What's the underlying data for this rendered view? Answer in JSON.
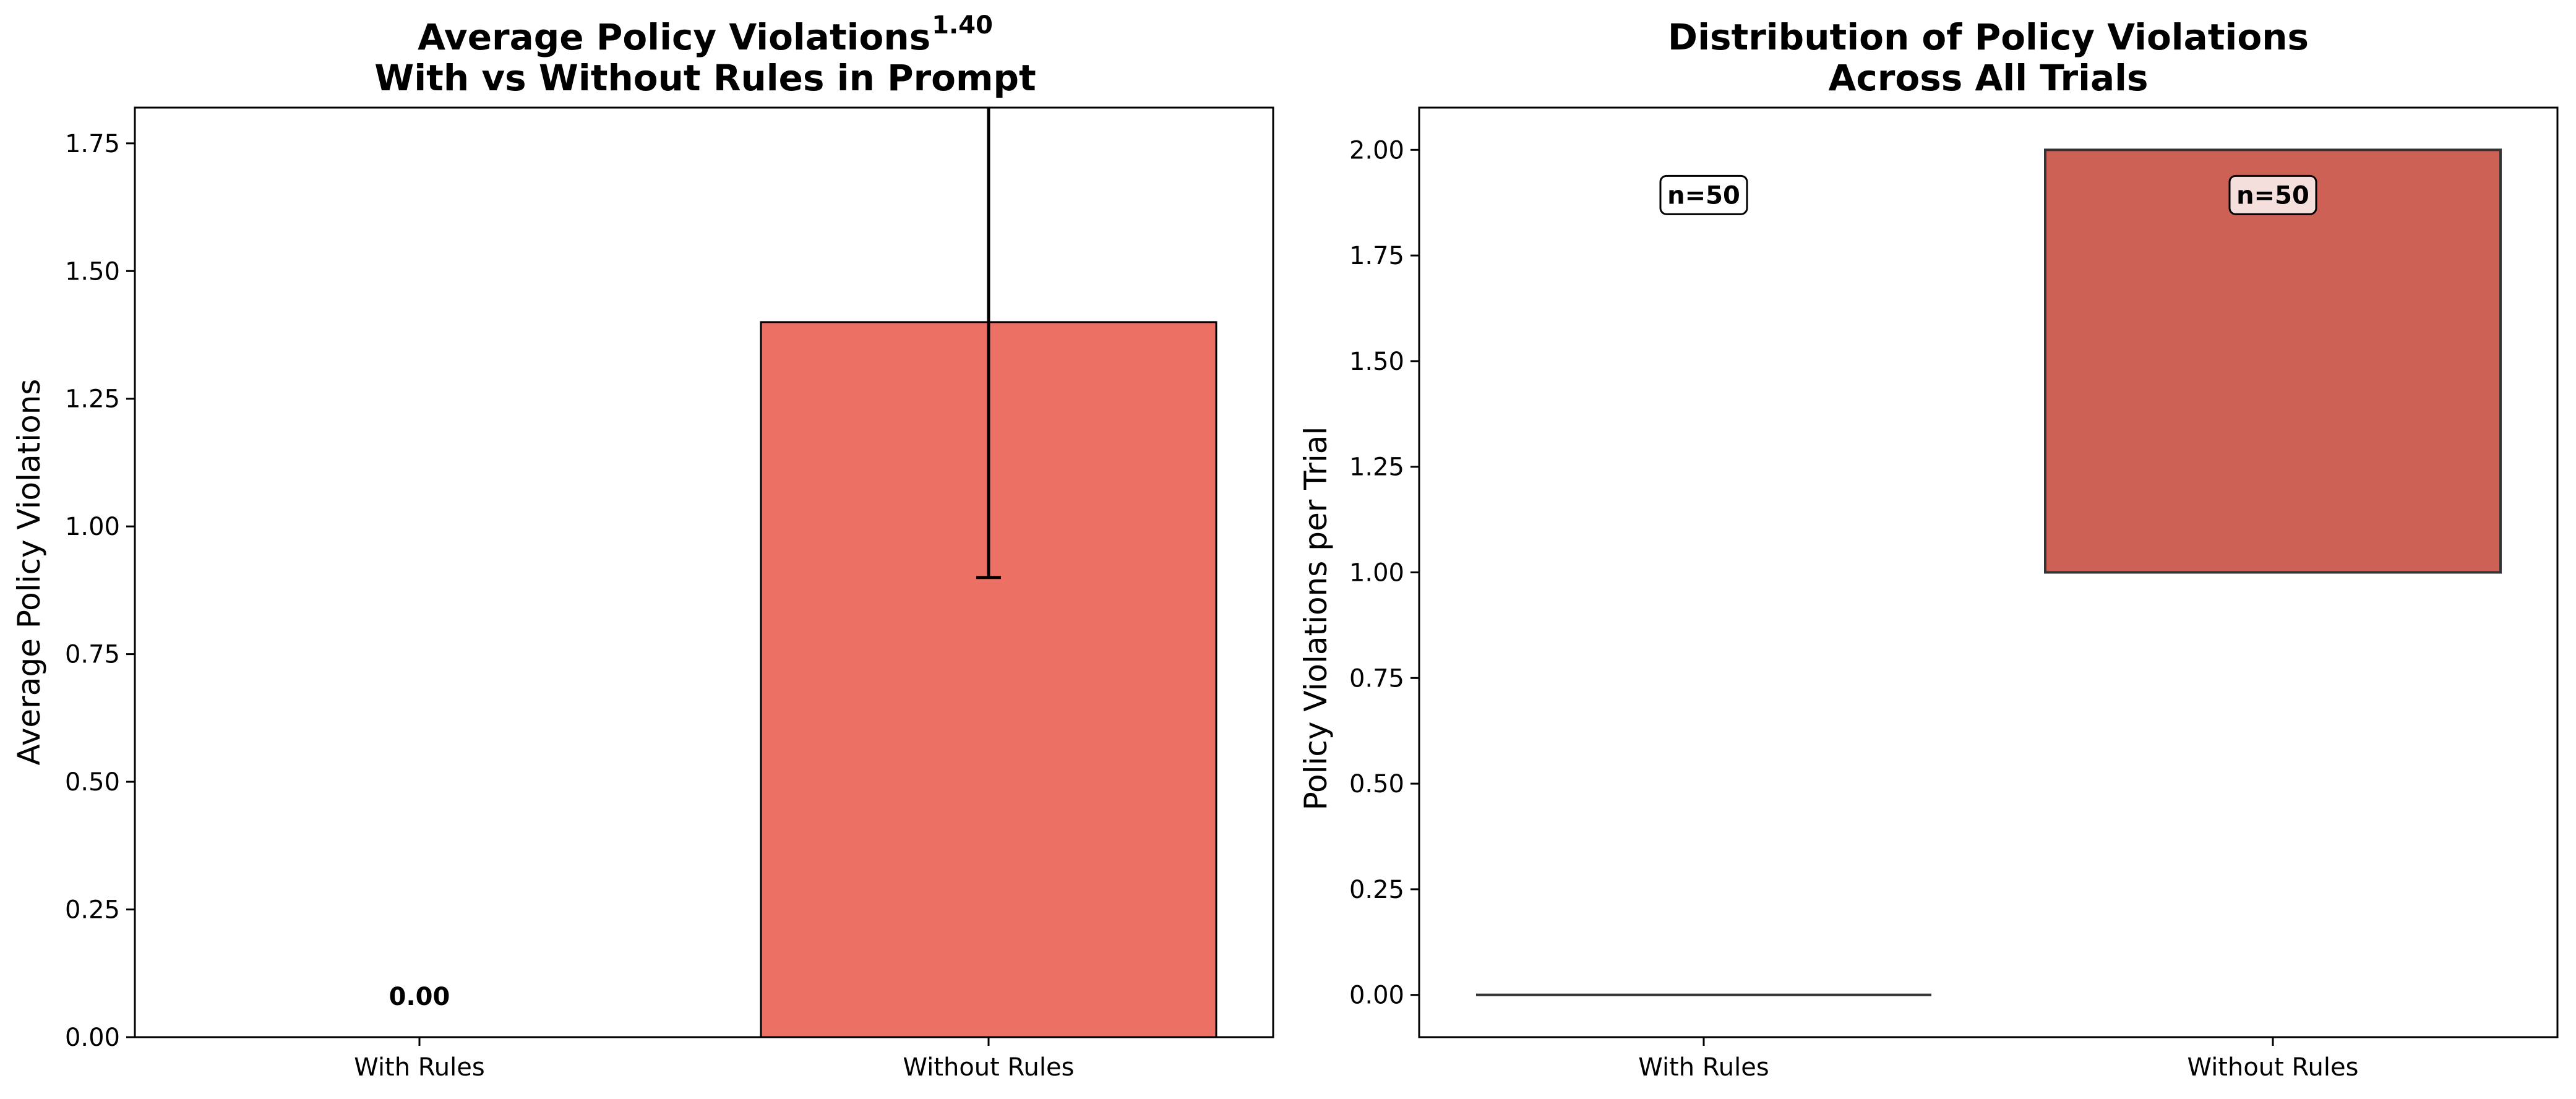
{
  "chart_data": [
    {
      "type": "bar",
      "title": "Average Policy Violations\nWith vs Without Rules in Prompt",
      "categories": [
        "With Rules",
        "Without Rules"
      ],
      "values": [
        0.0,
        1.4
      ],
      "error": [
        0,
        0.5
      ],
      "data_labels": [
        "0.00",
        "1.40"
      ],
      "ylabel": "Average Policy Violations",
      "xlabel": "",
      "ylim": [
        0,
        1.82
      ],
      "yticks": [
        0.0,
        0.25,
        0.5,
        0.75,
        1.0,
        1.25,
        1.5,
        1.75
      ],
      "ytick_labels": [
        "0.00",
        "0.25",
        "0.50",
        "0.75",
        "1.00",
        "1.25",
        "1.50",
        "1.75"
      ],
      "colors": [
        "#e74c3c",
        "#e74c3c"
      ],
      "grid": false
    },
    {
      "type": "box",
      "title": "Distribution of Policy Violations\nAcross All Trials",
      "categories": [
        "With Rules",
        "Without Rules"
      ],
      "boxes": [
        {
          "category": "With Rules",
          "min": 0,
          "q1": 0,
          "median": 0,
          "q3": 0,
          "max": 0,
          "n_label": "n=50"
        },
        {
          "category": "Without Rules",
          "min": 1,
          "q1": 1,
          "median": 2,
          "q3": 2,
          "max": 2,
          "n_label": "n=50"
        }
      ],
      "ylabel": "Policy Violations per Trial",
      "xlabel": "",
      "ylim": [
        -0.1,
        2.1
      ],
      "yticks": [
        0.0,
        0.25,
        0.5,
        0.75,
        1.0,
        1.25,
        1.5,
        1.75,
        2.0
      ],
      "ytick_labels": [
        "0.00",
        "0.25",
        "0.50",
        "0.75",
        "1.00",
        "1.25",
        "1.50",
        "1.75",
        "2.00"
      ],
      "colors": [
        "#c0392b",
        "#c0392b"
      ],
      "grid": false
    }
  ]
}
